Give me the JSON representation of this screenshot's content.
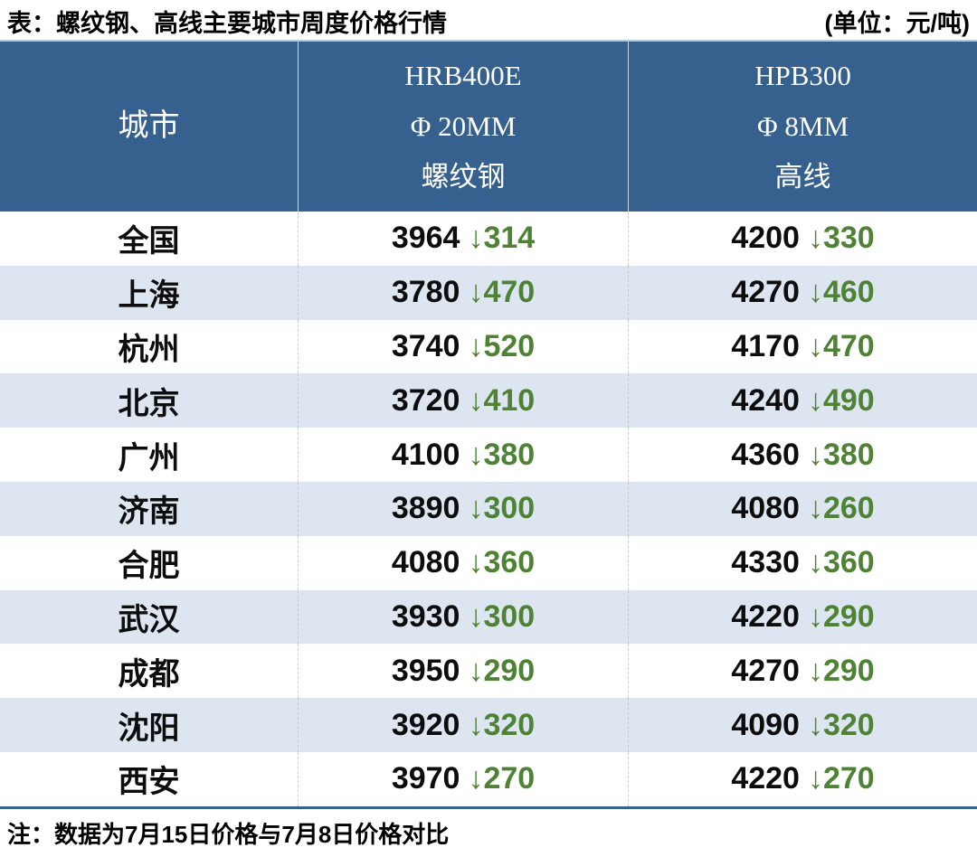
{
  "title": "表：螺纹钢、高线主要城市周度价格行情",
  "unit_label": "(单位：元/吨)",
  "note": "注：数据为7月15日价格与7月8日价格对比",
  "colors": {
    "header_bg": "#36608e",
    "row_alt_bg": "#dce5f0",
    "down_green": "#4e8234",
    "price_black": "#0d0d0d"
  },
  "table": {
    "down_arrow": "↓",
    "columns": [
      {
        "line1": "城市"
      },
      {
        "line1": "HRB400E",
        "line2": "Φ 20MM",
        "line3": "螺纹钢"
      },
      {
        "line1": "HPB300",
        "line2": "Φ 8MM",
        "line3": "高线"
      }
    ],
    "rows": [
      {
        "city": "全国",
        "rebar_price": "3964",
        "rebar_change": "↓314",
        "wire_price": "4200",
        "wire_change": "↓330"
      },
      {
        "city": "上海",
        "rebar_price": "3780",
        "rebar_change": "↓470",
        "wire_price": "4270",
        "wire_change": "↓460"
      },
      {
        "city": "杭州",
        "rebar_price": "3740",
        "rebar_change": "↓520",
        "wire_price": "4170",
        "wire_change": "↓470"
      },
      {
        "city": "北京",
        "rebar_price": "3720",
        "rebar_change": "↓410",
        "wire_price": "4240",
        "wire_change": "↓490"
      },
      {
        "city": "广州",
        "rebar_price": "4100",
        "rebar_change": "↓380",
        "wire_price": "4360",
        "wire_change": "↓380"
      },
      {
        "city": "济南",
        "rebar_price": "3890",
        "rebar_change": "↓300",
        "wire_price": "4080",
        "wire_change": "↓260"
      },
      {
        "city": "合肥",
        "rebar_price": "4080",
        "rebar_change": "↓360",
        "wire_price": "4330",
        "wire_change": "↓360"
      },
      {
        "city": "武汉",
        "rebar_price": "3930",
        "rebar_change": "↓300",
        "wire_price": "4220",
        "wire_change": "↓290"
      },
      {
        "city": "成都",
        "rebar_price": "3950",
        "rebar_change": "↓290",
        "wire_price": "4270",
        "wire_change": "↓290"
      },
      {
        "city": "沈阳",
        "rebar_price": "3920",
        "rebar_change": "↓320",
        "wire_price": "4090",
        "wire_change": "↓320"
      },
      {
        "city": "西安",
        "rebar_price": "3970",
        "rebar_change": "↓270",
        "wire_price": "4220",
        "wire_change": "↓270"
      }
    ]
  },
  "chart_data": {
    "type": "table",
    "title": "表：螺纹钢、高线主要城市周度价格行情",
    "unit": "元/吨",
    "columns": [
      "城市",
      "HRB400E Φ20MM 螺纹钢",
      "HPB300 Φ8MM 高线"
    ],
    "note": "注：数据为7月15日价格与7月8日价格对比",
    "rows": [
      {
        "city": "全国",
        "hrb400e_price": 3964,
        "hrb400e_weekly_drop": 314,
        "hpb300_price": 4200,
        "hpb300_weekly_drop": 330
      },
      {
        "city": "上海",
        "hrb400e_price": 3780,
        "hrb400e_weekly_drop": 470,
        "hpb300_price": 4270,
        "hpb300_weekly_drop": 460
      },
      {
        "city": "杭州",
        "hrb400e_price": 3740,
        "hrb400e_weekly_drop": 520,
        "hpb300_price": 4170,
        "hpb300_weekly_drop": 470
      },
      {
        "city": "北京",
        "hrb400e_price": 3720,
        "hrb400e_weekly_drop": 410,
        "hpb300_price": 4240,
        "hpb300_weekly_drop": 490
      },
      {
        "city": "广州",
        "hrb400e_price": 4100,
        "hrb400e_weekly_drop": 380,
        "hpb300_price": 4360,
        "hpb300_weekly_drop": 380
      },
      {
        "city": "济南",
        "hrb400e_price": 3890,
        "hrb400e_weekly_drop": 300,
        "hpb300_price": 4080,
        "hpb300_weekly_drop": 260
      },
      {
        "city": "合肥",
        "hrb400e_price": 4080,
        "hrb400e_weekly_drop": 360,
        "hpb300_price": 4330,
        "hpb300_weekly_drop": 360
      },
      {
        "city": "武汉",
        "hrb400e_price": 3930,
        "hrb400e_weekly_drop": 300,
        "hpb300_price": 4220,
        "hpb300_weekly_drop": 290
      },
      {
        "city": "成都",
        "hrb400e_price": 3950,
        "hrb400e_weekly_drop": 290,
        "hpb300_price": 4270,
        "hpb300_weekly_drop": 290
      },
      {
        "city": "沈阳",
        "hrb400e_price": 3920,
        "hrb400e_weekly_drop": 320,
        "hpb300_price": 4090,
        "hpb300_weekly_drop": 320
      },
      {
        "city": "西安",
        "hrb400e_price": 3970,
        "hrb400e_weekly_drop": 270,
        "hpb300_price": 4220,
        "hpb300_weekly_drop": 270
      }
    ]
  }
}
